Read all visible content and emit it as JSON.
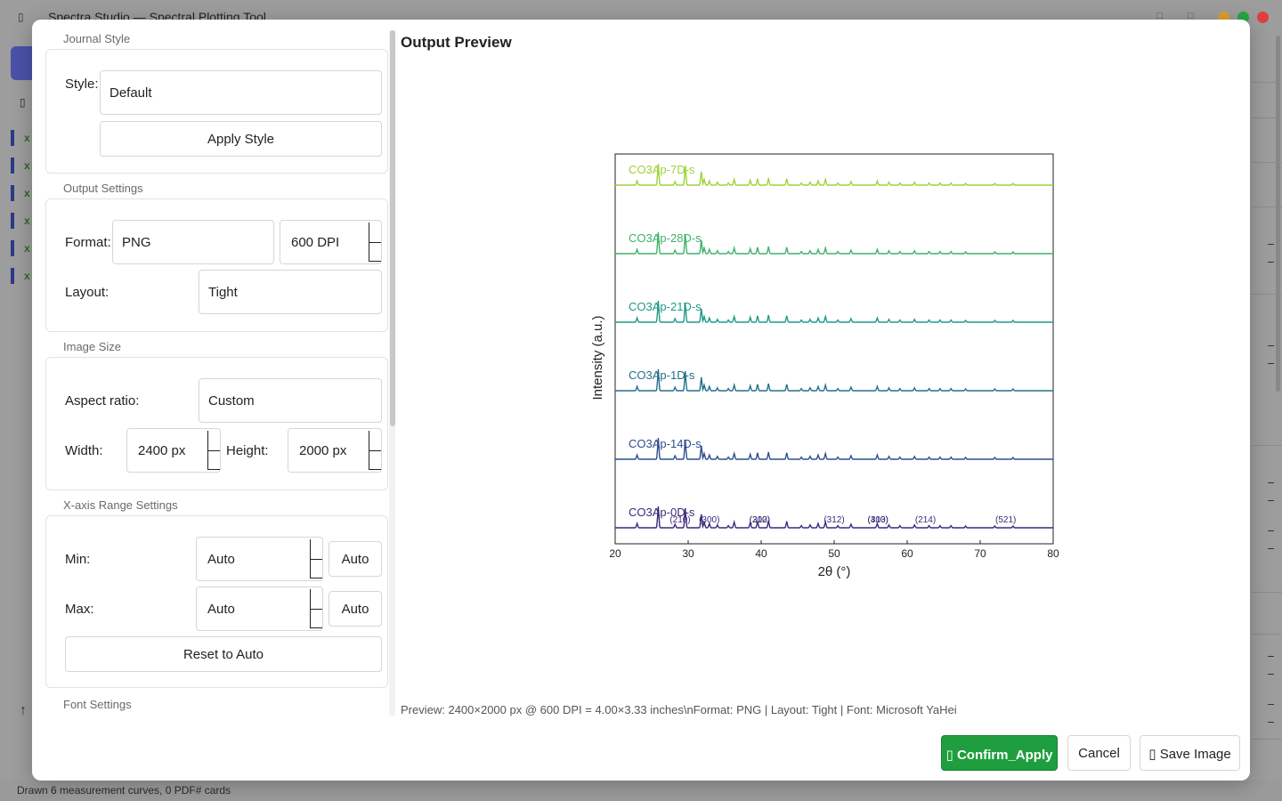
{
  "app": {
    "window_title": "Spectra Studio — Spectral Plotting Tool",
    "status_text": "Drawn 6 measurement curves, 0 PDF# cards",
    "sidebar_curve_glyph": "x",
    "up_arrow": "↑",
    "app_icon": "▯",
    "minimize_glyph": "□",
    "maximize_glyph": "□",
    "win_colors": {
      "minimize": "#e0a030",
      "maximize": "#28a745",
      "close": "#e0403c"
    }
  },
  "dialog": {
    "journal_style": {
      "group_title": "Journal Style",
      "style_label": "Style:",
      "style_value": "Default",
      "apply_button": "Apply Style"
    },
    "output_settings": {
      "group_title": "Output Settings",
      "format_label": "Format:",
      "format_value": "PNG",
      "dpi_value": "600 DPI",
      "layout_label": "Layout:",
      "layout_value": "Tight"
    },
    "image_size": {
      "group_title": "Image Size",
      "aspect_label": "Aspect ratio:",
      "aspect_value": "Custom",
      "width_label": "Width:",
      "width_value": "2400 px",
      "height_label": "Height:",
      "height_value": "2000 px"
    },
    "x_range": {
      "group_title": "X-axis Range Settings",
      "min_label": "Min:",
      "min_value": "Auto",
      "min_auto_button": "Auto",
      "max_label": "Max:",
      "max_value": "Auto",
      "max_auto_button": "Auto",
      "reset_button": "Reset to Auto"
    },
    "font_settings": {
      "group_title": "Font Settings"
    },
    "preview": {
      "title": "Output Preview",
      "info": "Preview: 2400×2000 px @ 600 DPI = 4.00×3.33 inches\\nFormat: PNG | Layout: Tight | Font: Microsoft YaHei"
    },
    "buttons": {
      "confirm": "▯ Confirm_Apply",
      "cancel": "Cancel",
      "save": "▯ Save Image"
    },
    "colors": {
      "confirm": "#1e9e3e"
    }
  },
  "chart_data": {
    "type": "line",
    "xlabel": "2θ (°)",
    "ylabel": "Intensity (a.u.)",
    "xlim": [
      20,
      80
    ],
    "xticks": [
      20,
      30,
      40,
      50,
      60,
      70,
      80
    ],
    "grid": false,
    "series": [
      {
        "name": "CO3Ap-0D-s",
        "color": "#3b2a7a"
      },
      {
        "name": "CO3Ap-14D-s",
        "color": "#2f4e8c"
      },
      {
        "name": "CO3Ap-1D-s",
        "color": "#256f89"
      },
      {
        "name": "CO3Ap-21D-s",
        "color": "#1f9a88"
      },
      {
        "name": "CO3Ap-28D-s",
        "color": "#3fb26a"
      },
      {
        "name": "CO3Ap-7D-s",
        "color": "#9fd23a"
      }
    ],
    "peaks_2theta": [
      23.0,
      25.9,
      28.2,
      29.6,
      31.8,
      32.2,
      32.9,
      34.0,
      35.5,
      36.3,
      38.5,
      39.5,
      41.0,
      43.5,
      45.5,
      46.7,
      47.8,
      48.8,
      50.5,
      52.3,
      55.9,
      57.5,
      59.0,
      61.0,
      63.0,
      64.5,
      66.0,
      68.0,
      72.0,
      74.5
    ],
    "peak_heights": [
      0.12,
      0.6,
      0.1,
      0.55,
      0.38,
      0.16,
      0.12,
      0.08,
      0.06,
      0.16,
      0.14,
      0.18,
      0.2,
      0.18,
      0.06,
      0.08,
      0.12,
      0.16,
      0.06,
      0.1,
      0.12,
      0.08,
      0.06,
      0.08,
      0.06,
      0.06,
      0.06,
      0.05,
      0.05,
      0.05
    ],
    "annotations": [
      {
        "text": "(210)",
        "x": 28.9
      },
      {
        "text": "(300)",
        "x": 32.9
      },
      {
        "text": "(310)",
        "x": 39.8
      },
      {
        "text": "(202)",
        "x": 39.8
      },
      {
        "text": "(312)",
        "x": 50.0
      },
      {
        "text": "(313)",
        "x": 56.0
      },
      {
        "text": "(400)",
        "x": 56.0
      },
      {
        "text": "(214)",
        "x": 62.5
      },
      {
        "text": "(521)",
        "x": 73.5
      }
    ]
  }
}
